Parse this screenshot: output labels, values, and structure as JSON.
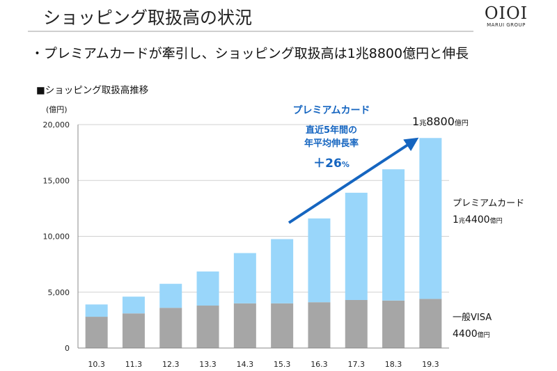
{
  "header": {
    "title": "ショッピング取扱高の状況",
    "logo_mark": "OIOI",
    "logo_text": "MARUI GROUP"
  },
  "bullet": "・プレミアムカードが牽引し、ショッピング取扱高は1兆8800億円と伸長",
  "section_label": "■ショッピング取扱高推移",
  "colors": {
    "premium": "#99d6fa",
    "general": "#a6a6a6",
    "arrow": "#1565c0",
    "grid": "#d0d0d0"
  },
  "chart_data": {
    "type": "bar",
    "stacked": true,
    "unit_label": "(億円)",
    "categories": [
      "10.3",
      "11.3",
      "12.3",
      "13.3",
      "14.3",
      "15.3",
      "16.3",
      "17.3",
      "18.3",
      "19.3"
    ],
    "series": [
      {
        "name": "一般VISA",
        "values": [
          2800,
          3100,
          3600,
          3800,
          4000,
          4000,
          4100,
          4300,
          4250,
          4400
        ]
      },
      {
        "name": "プレミアムカード",
        "values": [
          1100,
          1500,
          2150,
          3050,
          4500,
          5750,
          7500,
          9600,
          11750,
          14400
        ]
      }
    ],
    "yticks": [
      "0",
      "5,000",
      "10,000",
      "15,000",
      "20,000"
    ],
    "ylim": [
      0,
      20000
    ],
    "grid": true,
    "annotations": {
      "growth_title": "プレミアムカード",
      "growth_line1": "直近5年間の",
      "growth_line2": "年平均伸長率",
      "growth_value": "＋26",
      "growth_unit": "%",
      "total_num1": "1",
      "total_unit1": "兆",
      "total_num2": "8800",
      "total_unit2": "億円",
      "premium_label": "プレミアムカード",
      "premium_num1": "1",
      "premium_unit1": "兆",
      "premium_num2": "4400",
      "premium_unit2": "億円",
      "general_label": "一般VISA",
      "general_num": "4400",
      "general_unit": "億円"
    }
  }
}
